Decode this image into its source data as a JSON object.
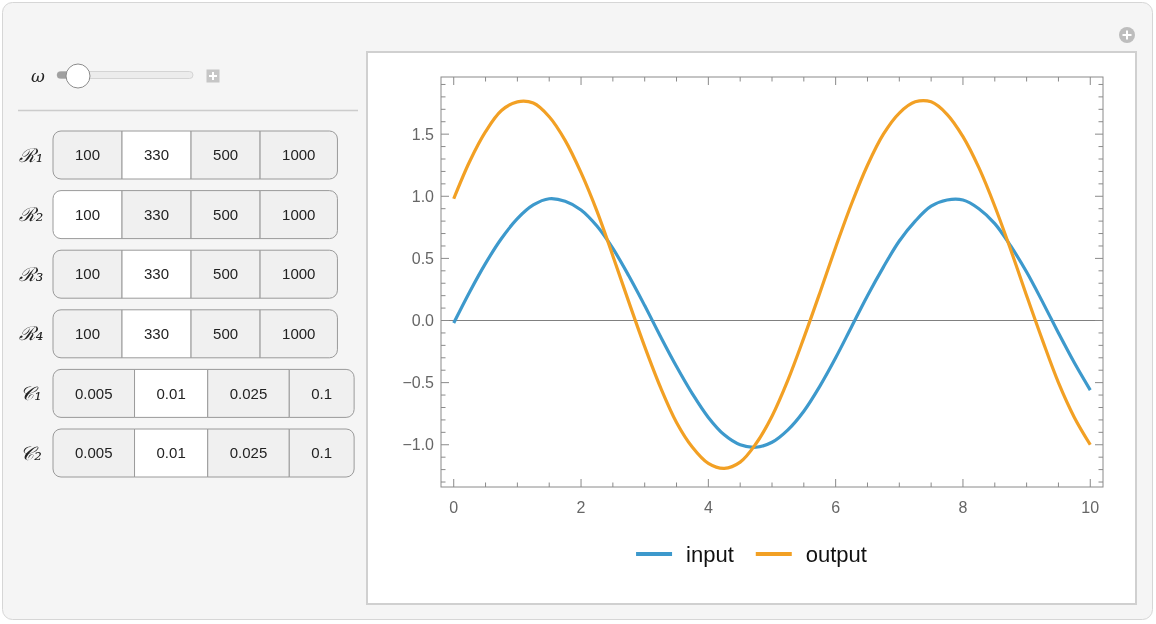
{
  "chart_data": [
    {
      "type": "other",
      "annotations": [
        "ω",
        "ℛ₁",
        "100",
        "330",
        "500",
        "1000",
        "ℛ₂",
        "100",
        "330",
        "500",
        "1000",
        "ℛ₃",
        "100",
        "330",
        "500",
        "1000",
        "ℛ₄",
        "100",
        "330",
        "500",
        "1000",
        "𝒞₁",
        "0.005",
        "0.01",
        "0.025",
        "0.1",
        "𝒞₂",
        "0.005",
        "0.01",
        "0.025",
        "0.1"
      ]
    },
    {
      "type": "line",
      "xlim": [
        -0.2,
        10.2
      ],
      "ylim": [
        -1.34,
        1.96
      ],
      "xticks": [
        0,
        {
          "value": 0.5,
          "label": null
        },
        {
          "value": 1,
          "label": null
        },
        {
          "value": 1.5,
          "label": null
        },
        2,
        {
          "value": 2.5,
          "label": null
        },
        {
          "value": 3,
          "label": null
        },
        {
          "value": 3.5,
          "label": null
        },
        4,
        {
          "value": 4.5,
          "label": null
        },
        {
          "value": 5,
          "label": null
        },
        {
          "value": 5.5,
          "label": null
        },
        6,
        {
          "value": 6.5,
          "label": null
        },
        {
          "value": 7,
          "label": null
        },
        {
          "value": 7.5,
          "label": null
        },
        8,
        {
          "value": 8.5,
          "label": null
        },
        {
          "value": 9,
          "label": null
        },
        {
          "value": 9.5,
          "label": null
        },
        10
      ],
      "yticks": [
        {
          "value": -1.3,
          "label": null
        },
        {
          "value": -1.2,
          "label": null
        },
        {
          "value": -1.1,
          "label": null
        },
        {
          "value": -1,
          "label": "−1.0"
        },
        {
          "value": -0.9,
          "label": null
        },
        {
          "value": -0.8,
          "label": null
        },
        {
          "value": -0.7,
          "label": null
        },
        {
          "value": -0.6,
          "label": null
        },
        {
          "value": -0.5,
          "label": "−0.5"
        },
        {
          "value": -0.4,
          "label": null
        },
        {
          "value": -0.3,
          "label": null
        },
        {
          "value": -0.2,
          "label": null
        },
        {
          "value": -0.1,
          "label": null
        },
        {
          "value": 0,
          "label": "0.0"
        },
        {
          "value": 0.1,
          "label": null
        },
        {
          "value": 0.2,
          "label": null
        },
        {
          "value": 0.3,
          "label": null
        },
        {
          "value": 0.4,
          "label": null
        },
        0.5,
        {
          "value": 0.6,
          "label": null
        },
        {
          "value": 0.7,
          "label": null
        },
        {
          "value": 0.8,
          "label": null
        },
        {
          "value": 0.9,
          "label": null
        },
        {
          "value": 1,
          "label": "1.0"
        },
        {
          "value": 1.1,
          "label": null
        },
        {
          "value": 1.2,
          "label": null
        },
        {
          "value": 1.3,
          "label": null
        },
        {
          "value": 1.4,
          "label": null
        },
        1.5,
        {
          "value": 1.6,
          "label": null
        },
        {
          "value": 1.7,
          "label": null
        },
        {
          "value": 1.8,
          "label": null
        },
        {
          "value": 1.9,
          "label": null
        }
      ],
      "x": [
        0,
        0.25,
        0.5,
        0.75,
        1,
        1.25,
        1.5,
        1.75,
        2,
        2.25,
        2.5,
        2.75,
        3,
        3.25,
        3.5,
        3.75,
        4,
        4.25,
        4.5,
        4.75,
        5,
        5.25,
        5.5,
        5.75,
        6,
        6.25,
        6.5,
        6.75,
        7,
        7.25,
        7.5,
        7.75,
        8,
        8.25,
        8.5,
        8.75,
        9,
        9.25,
        9.5,
        9.75,
        10
      ],
      "series": [
        {
          "name": "input",
          "color": "#3d99cc",
          "values": [
            -0.02,
            0.23,
            0.46,
            0.66,
            0.82,
            0.93,
            0.98,
            0.96,
            0.89,
            0.76,
            0.58,
            0.36,
            0.12,
            -0.13,
            -0.37,
            -0.59,
            -0.78,
            -0.92,
            -1.0,
            -1.02,
            -0.98,
            -0.88,
            -0.73,
            -0.53,
            -0.3,
            -0.05,
            0.2,
            0.43,
            0.64,
            0.8,
            0.92,
            0.97,
            0.97,
            0.9,
            0.78,
            0.6,
            0.39,
            0.15,
            -0.1,
            -0.34,
            -0.56
          ]
        },
        {
          "name": "output",
          "color": "#f2a024",
          "values": [
            0.98,
            1.28,
            1.52,
            1.69,
            1.76,
            1.75,
            1.64,
            1.45,
            1.19,
            0.88,
            0.52,
            0.15,
            -0.21,
            -0.54,
            -0.82,
            -1.02,
            -1.15,
            -1.19,
            -1.14,
            -0.99,
            -0.77,
            -0.48,
            -0.14,
            0.22,
            0.59,
            0.94,
            1.25,
            1.5,
            1.67,
            1.76,
            1.76,
            1.66,
            1.48,
            1.23,
            0.92,
            0.57,
            0.2,
            -0.16,
            -0.5,
            -0.78,
            -1.0
          ]
        }
      ],
      "ref_lines": [
        {
          "axis": "y",
          "value": 0,
          "color": "#808080"
        }
      ],
      "legend": "bottom"
    }
  ]
}
